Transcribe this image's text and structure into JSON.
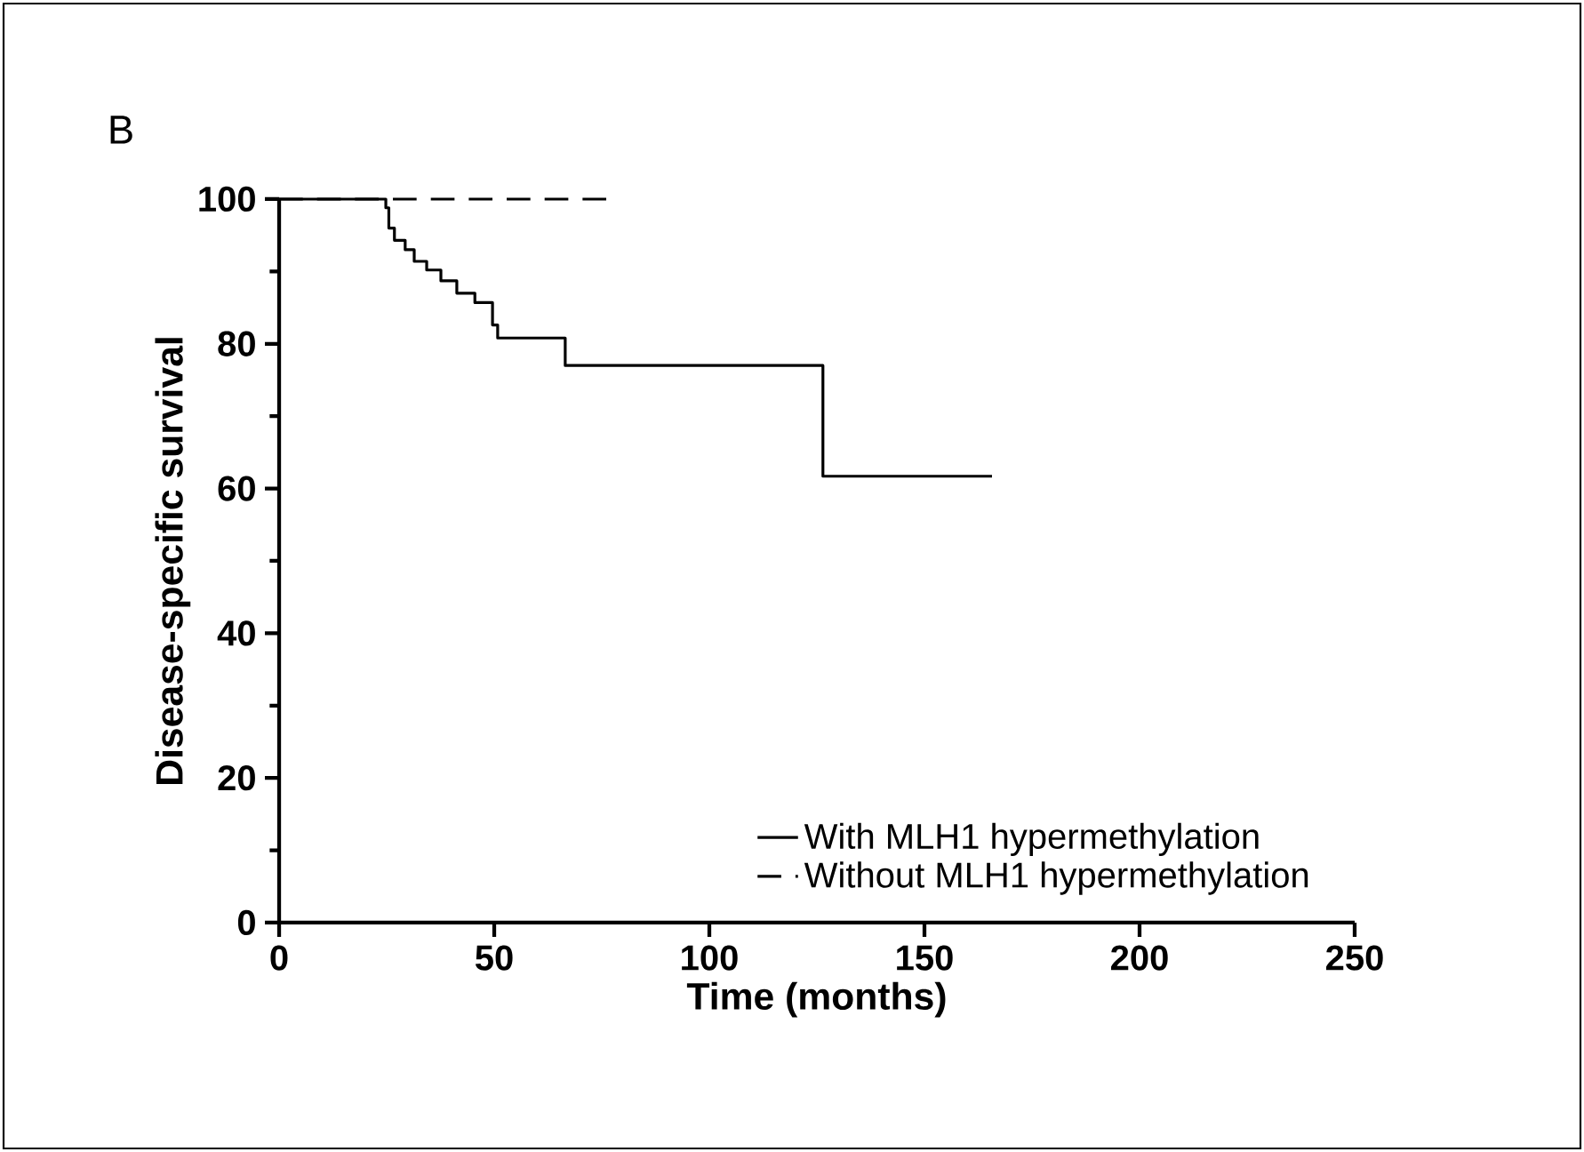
{
  "chart_data": {
    "type": "step",
    "xlabel": "Time (months)",
    "ylabel": "Disease-specific survival",
    "xlim": [
      0,
      250
    ],
    "xticks": [
      0,
      50,
      100,
      150,
      200,
      250
    ],
    "ylim": [
      0,
      100
    ],
    "yticks": [
      0,
      20,
      40,
      60,
      80,
      100
    ],
    "grid": false,
    "legend": "bottom right",
    "marker": "none",
    "annotations": [
      "B"
    ],
    "series": [
      {
        "name": "With MLH1 hypermethylation",
        "color": "#000000",
        "line_style": "solid",
        "x": [
          0,
          24.8,
          25.5,
          26.8,
          29.3,
          31.4,
          34.3,
          37.6,
          41.3,
          45.5,
          49.6,
          50.8,
          52,
          66.5,
          126.4,
          165.7
        ],
        "values": [
          100,
          98.8,
          96,
          94.3,
          93,
          91.4,
          90.2,
          88.7,
          87,
          85.7,
          82.6,
          80.8,
          80.8,
          77,
          61.7,
          61.7
        ]
      },
      {
        "name": "Without MLH1 hypermethylation",
        "color": "#000000",
        "line_style": "dashed",
        "x": [
          0,
          78
        ],
        "values": [
          100,
          100
        ]
      }
    ]
  }
}
